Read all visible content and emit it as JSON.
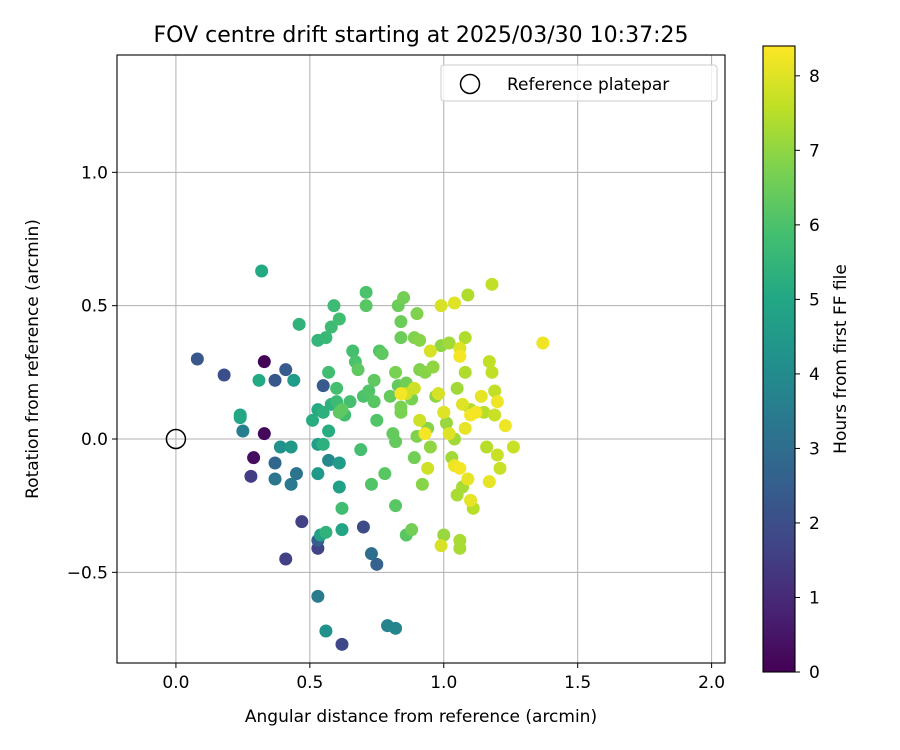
{
  "chart_data": {
    "type": "scatter",
    "title": "FOV centre drift starting at 2025/03/30 10:37:25",
    "xlabel": "Angular distance from reference (arcmin)",
    "ylabel": "Rotation from reference (arcmin)",
    "xlim": [
      -0.22,
      2.05
    ],
    "ylim": [
      -0.84,
      1.44
    ],
    "xticks": [
      0.0,
      0.5,
      1.0,
      1.5,
      2.0
    ],
    "xtick_labels": [
      "0.0",
      "0.5",
      "1.0",
      "1.5",
      "2.0"
    ],
    "yticks": [
      -0.5,
      0.0,
      0.5,
      1.0
    ],
    "ytick_labels": [
      "−0.5",
      "0.0",
      "0.5",
      "1.0"
    ],
    "grid": true,
    "colormap": "viridis",
    "colorbar": {
      "label": "Hours from first FF file",
      "range": [
        0,
        8.4
      ],
      "ticks": [
        0,
        1,
        2,
        3,
        4,
        5,
        6,
        7,
        8
      ],
      "tick_labels": [
        "0",
        "1",
        "2",
        "3",
        "4",
        "5",
        "6",
        "7",
        "8"
      ]
    },
    "legend": {
      "placement": "top-right",
      "entries": [
        {
          "label": "Reference platepar",
          "marker": "open-circle"
        }
      ]
    },
    "reference_point": {
      "x": 0.0,
      "y": 0.0
    },
    "points": [
      {
        "x": 0.33,
        "y": 0.29,
        "h": 0.1
      },
      {
        "x": 0.33,
        "y": 0.02,
        "h": 0.2
      },
      {
        "x": 0.29,
        "y": -0.07,
        "h": 0.3
      },
      {
        "x": 0.28,
        "y": -0.14,
        "h": 1.5
      },
      {
        "x": 0.47,
        "y": -0.31,
        "h": 1.6
      },
      {
        "x": 0.41,
        "y": -0.45,
        "h": 1.6
      },
      {
        "x": 0.53,
        "y": -0.41,
        "h": 1.7
      },
      {
        "x": 0.62,
        "y": -0.77,
        "h": 1.8
      },
      {
        "x": 0.7,
        "y": -0.33,
        "h": 1.9
      },
      {
        "x": 0.18,
        "y": 0.24,
        "h": 2.0
      },
      {
        "x": 0.08,
        "y": 0.3,
        "h": 2.3
      },
      {
        "x": 0.37,
        "y": 0.22,
        "h": 2.3
      },
      {
        "x": 0.41,
        "y": 0.26,
        "h": 2.4
      },
      {
        "x": 0.55,
        "y": 0.2,
        "h": 2.4
      },
      {
        "x": 0.53,
        "y": -0.38,
        "h": 2.5
      },
      {
        "x": 0.75,
        "y": -0.47,
        "h": 2.6
      },
      {
        "x": 0.37,
        "y": -0.09,
        "h": 2.8
      },
      {
        "x": 0.73,
        "y": -0.43,
        "h": 3.0
      },
      {
        "x": 0.45,
        "y": -0.13,
        "h": 3.2
      },
      {
        "x": 0.37,
        "y": -0.15,
        "h": 3.3
      },
      {
        "x": 0.43,
        "y": -0.17,
        "h": 3.4
      },
      {
        "x": 0.53,
        "y": -0.59,
        "h": 3.5
      },
      {
        "x": 0.25,
        "y": 0.03,
        "h": 3.6
      },
      {
        "x": 0.79,
        "y": -0.7,
        "h": 3.7
      },
      {
        "x": 0.82,
        "y": -0.71,
        "h": 3.8
      },
      {
        "x": 0.57,
        "y": -0.08,
        "h": 3.9
      },
      {
        "x": 0.56,
        "y": -0.72,
        "h": 4.2
      },
      {
        "x": 0.39,
        "y": -0.03,
        "h": 4.2
      },
      {
        "x": 0.43,
        "y": -0.03,
        "h": 4.5
      },
      {
        "x": 0.53,
        "y": -0.13,
        "h": 4.5
      },
      {
        "x": 0.61,
        "y": -0.09,
        "h": 4.6
      },
      {
        "x": 0.44,
        "y": 0.22,
        "h": 4.6
      },
      {
        "x": 0.61,
        "y": -0.18,
        "h": 4.7
      },
      {
        "x": 0.53,
        "y": -0.02,
        "h": 4.7
      },
      {
        "x": 0.54,
        "y": -0.36,
        "h": 4.8
      },
      {
        "x": 0.62,
        "y": -0.34,
        "h": 4.9
      },
      {
        "x": 0.24,
        "y": 0.09,
        "h": 5.0
      },
      {
        "x": 0.24,
        "y": 0.08,
        "h": 5.0
      },
      {
        "x": 0.31,
        "y": 0.22,
        "h": 5.1
      },
      {
        "x": 0.32,
        "y": 0.63,
        "h": 5.1
      },
      {
        "x": 0.53,
        "y": 0.11,
        "h": 5.1
      },
      {
        "x": 0.51,
        "y": 0.07,
        "h": 5.2
      },
      {
        "x": 0.57,
        "y": 0.03,
        "h": 5.2
      },
      {
        "x": 0.58,
        "y": 0.13,
        "h": 5.3
      },
      {
        "x": 0.55,
        "y": -0.02,
        "h": 5.3
      },
      {
        "x": 0.55,
        "y": 0.1,
        "h": 5.3
      },
      {
        "x": 0.56,
        "y": -0.35,
        "h": 5.4
      },
      {
        "x": 0.46,
        "y": 0.43,
        "h": 5.4
      },
      {
        "x": 0.53,
        "y": 0.37,
        "h": 5.5
      },
      {
        "x": 0.56,
        "y": 0.38,
        "h": 5.6
      },
      {
        "x": 0.58,
        "y": 0.42,
        "h": 5.7
      },
      {
        "x": 0.59,
        "y": 0.5,
        "h": 5.7
      },
      {
        "x": 0.6,
        "y": 0.14,
        "h": 5.7
      },
      {
        "x": 0.61,
        "y": 0.45,
        "h": 5.8
      },
      {
        "x": 0.62,
        "y": -0.26,
        "h": 5.8
      },
      {
        "x": 0.57,
        "y": 0.25,
        "h": 5.8
      },
      {
        "x": 0.63,
        "y": 0.09,
        "h": 5.8
      },
      {
        "x": 0.69,
        "y": -0.04,
        "h": 5.9
      },
      {
        "x": 0.6,
        "y": 0.19,
        "h": 5.9
      },
      {
        "x": 0.65,
        "y": 0.14,
        "h": 5.9
      },
      {
        "x": 0.66,
        "y": 0.33,
        "h": 5.9
      },
      {
        "x": 0.67,
        "y": 0.29,
        "h": 6.0
      },
      {
        "x": 0.7,
        "y": 0.16,
        "h": 6.0
      },
      {
        "x": 0.71,
        "y": 0.55,
        "h": 6.0
      },
      {
        "x": 0.72,
        "y": 0.18,
        "h": 6.1
      },
      {
        "x": 0.73,
        "y": -0.17,
        "h": 6.1
      },
      {
        "x": 0.75,
        "y": 0.07,
        "h": 6.1
      },
      {
        "x": 0.76,
        "y": 0.33,
        "h": 6.1
      },
      {
        "x": 0.78,
        "y": -0.13,
        "h": 6.2
      },
      {
        "x": 0.82,
        "y": -0.25,
        "h": 6.2
      },
      {
        "x": 0.86,
        "y": -0.36,
        "h": 6.2
      },
      {
        "x": 0.74,
        "y": 0.14,
        "h": 6.2
      },
      {
        "x": 0.71,
        "y": 0.5,
        "h": 6.2
      },
      {
        "x": 0.61,
        "y": 0.1,
        "h": 6.3
      },
      {
        "x": 0.62,
        "y": 0.11,
        "h": 6.3
      },
      {
        "x": 0.68,
        "y": 0.26,
        "h": 6.3
      },
      {
        "x": 0.74,
        "y": 0.22,
        "h": 6.3
      },
      {
        "x": 0.77,
        "y": 0.32,
        "h": 6.3
      },
      {
        "x": 0.8,
        "y": 0.16,
        "h": 6.4
      },
      {
        "x": 0.81,
        "y": 0.02,
        "h": 6.4
      },
      {
        "x": 0.82,
        "y": -0.01,
        "h": 6.4
      },
      {
        "x": 0.83,
        "y": 0.2,
        "h": 6.4
      },
      {
        "x": 0.83,
        "y": 0.5,
        "h": 6.5
      },
      {
        "x": 0.84,
        "y": 0.44,
        "h": 6.5
      },
      {
        "x": 0.84,
        "y": 0.38,
        "h": 6.5
      },
      {
        "x": 0.85,
        "y": 0.53,
        "h": 6.6
      },
      {
        "x": 0.86,
        "y": 0.21,
        "h": 6.6
      },
      {
        "x": 0.88,
        "y": -0.34,
        "h": 6.6
      },
      {
        "x": 0.89,
        "y": -0.07,
        "h": 6.6
      },
      {
        "x": 0.82,
        "y": 0.25,
        "h": 6.7
      },
      {
        "x": 0.84,
        "y": 0.1,
        "h": 6.7
      },
      {
        "x": 0.84,
        "y": 0.12,
        "h": 6.7
      },
      {
        "x": 0.88,
        "y": 0.15,
        "h": 6.7
      },
      {
        "x": 0.89,
        "y": 0.38,
        "h": 6.8
      },
      {
        "x": 0.9,
        "y": 0.47,
        "h": 6.8
      },
      {
        "x": 0.9,
        "y": 0.01,
        "h": 6.8
      },
      {
        "x": 0.91,
        "y": 0.26,
        "h": 6.8
      },
      {
        "x": 0.91,
        "y": 0.37,
        "h": 6.9
      },
      {
        "x": 0.92,
        "y": -0.17,
        "h": 6.9
      },
      {
        "x": 0.93,
        "y": 0.25,
        "h": 6.9
      },
      {
        "x": 0.94,
        "y": 0.04,
        "h": 6.9
      },
      {
        "x": 0.95,
        "y": -0.03,
        "h": 7.0
      },
      {
        "x": 0.96,
        "y": 0.27,
        "h": 7.0
      },
      {
        "x": 0.97,
        "y": 0.16,
        "h": 7.0
      },
      {
        "x": 0.98,
        "y": 0.17,
        "h": 7.0
      },
      {
        "x": 0.99,
        "y": 0.35,
        "h": 7.0
      },
      {
        "x": 1.0,
        "y": 0.1,
        "h": 7.1
      },
      {
        "x": 1.0,
        "y": -0.36,
        "h": 7.1
      },
      {
        "x": 1.01,
        "y": 0.06,
        "h": 7.1
      },
      {
        "x": 1.02,
        "y": 0.36,
        "h": 7.2
      },
      {
        "x": 1.03,
        "y": -0.07,
        "h": 7.2
      },
      {
        "x": 1.04,
        "y": 0.0,
        "h": 7.2
      },
      {
        "x": 1.05,
        "y": 0.19,
        "h": 7.2
      },
      {
        "x": 1.05,
        "y": -0.21,
        "h": 7.3
      },
      {
        "x": 1.06,
        "y": -0.38,
        "h": 7.3
      },
      {
        "x": 1.06,
        "y": -0.41,
        "h": 7.3
      },
      {
        "x": 1.07,
        "y": -0.18,
        "h": 7.3
      },
      {
        "x": 1.08,
        "y": 0.38,
        "h": 7.4
      },
      {
        "x": 1.08,
        "y": 0.25,
        "h": 7.4
      },
      {
        "x": 1.09,
        "y": 0.54,
        "h": 7.4
      },
      {
        "x": 1.1,
        "y": 0.11,
        "h": 7.4
      },
      {
        "x": 1.11,
        "y": -0.26,
        "h": 7.5
      },
      {
        "x": 1.12,
        "y": 0.1,
        "h": 7.5
      },
      {
        "x": 1.15,
        "y": 0.1,
        "h": 7.5
      },
      {
        "x": 1.16,
        "y": -0.03,
        "h": 7.5
      },
      {
        "x": 1.17,
        "y": 0.29,
        "h": 7.6
      },
      {
        "x": 1.18,
        "y": 0.58,
        "h": 7.6
      },
      {
        "x": 1.18,
        "y": 0.25,
        "h": 7.6
      },
      {
        "x": 1.19,
        "y": 0.18,
        "h": 7.6
      },
      {
        "x": 1.19,
        "y": 0.09,
        "h": 7.7
      },
      {
        "x": 1.2,
        "y": -0.06,
        "h": 7.7
      },
      {
        "x": 1.21,
        "y": -0.11,
        "h": 7.7
      },
      {
        "x": 1.26,
        "y": -0.03,
        "h": 7.7
      },
      {
        "x": 0.86,
        "y": 0.17,
        "h": 7.8
      },
      {
        "x": 0.89,
        "y": 0.19,
        "h": 7.8
      },
      {
        "x": 0.91,
        "y": 0.07,
        "h": 7.8
      },
      {
        "x": 0.94,
        "y": -0.11,
        "h": 7.8
      },
      {
        "x": 0.95,
        "y": 0.33,
        "h": 7.9
      },
      {
        "x": 0.98,
        "y": 0.17,
        "h": 7.9
      },
      {
        "x": 0.99,
        "y": 0.5,
        "h": 7.9
      },
      {
        "x": 0.99,
        "y": -0.4,
        "h": 7.9
      },
      {
        "x": 1.0,
        "y": 0.1,
        "h": 8.0
      },
      {
        "x": 1.02,
        "y": 0.02,
        "h": 8.0
      },
      {
        "x": 1.04,
        "y": 0.51,
        "h": 8.0
      },
      {
        "x": 1.06,
        "y": 0.34,
        "h": 8.0
      },
      {
        "x": 1.07,
        "y": 0.13,
        "h": 8.0
      },
      {
        "x": 1.08,
        "y": 0.04,
        "h": 8.1
      },
      {
        "x": 1.09,
        "y": -0.15,
        "h": 8.1
      },
      {
        "x": 1.1,
        "y": -0.23,
        "h": 8.1
      },
      {
        "x": 1.14,
        "y": 0.16,
        "h": 8.1
      },
      {
        "x": 1.17,
        "y": -0.16,
        "h": 8.1
      },
      {
        "x": 1.2,
        "y": 0.14,
        "h": 8.2
      },
      {
        "x": 1.23,
        "y": 0.05,
        "h": 8.2
      },
      {
        "x": 1.37,
        "y": 0.36,
        "h": 8.2
      },
      {
        "x": 1.04,
        "y": -0.1,
        "h": 8.2
      },
      {
        "x": 1.06,
        "y": 0.31,
        "h": 8.3
      },
      {
        "x": 1.1,
        "y": 0.09,
        "h": 8.3
      },
      {
        "x": 0.84,
        "y": 0.17,
        "h": 8.3
      },
      {
        "x": 1.12,
        "y": 0.1,
        "h": 8.3
      },
      {
        "x": 1.06,
        "y": -0.11,
        "h": 8.3
      },
      {
        "x": 0.93,
        "y": 0.02,
        "h": 8.3
      }
    ]
  }
}
